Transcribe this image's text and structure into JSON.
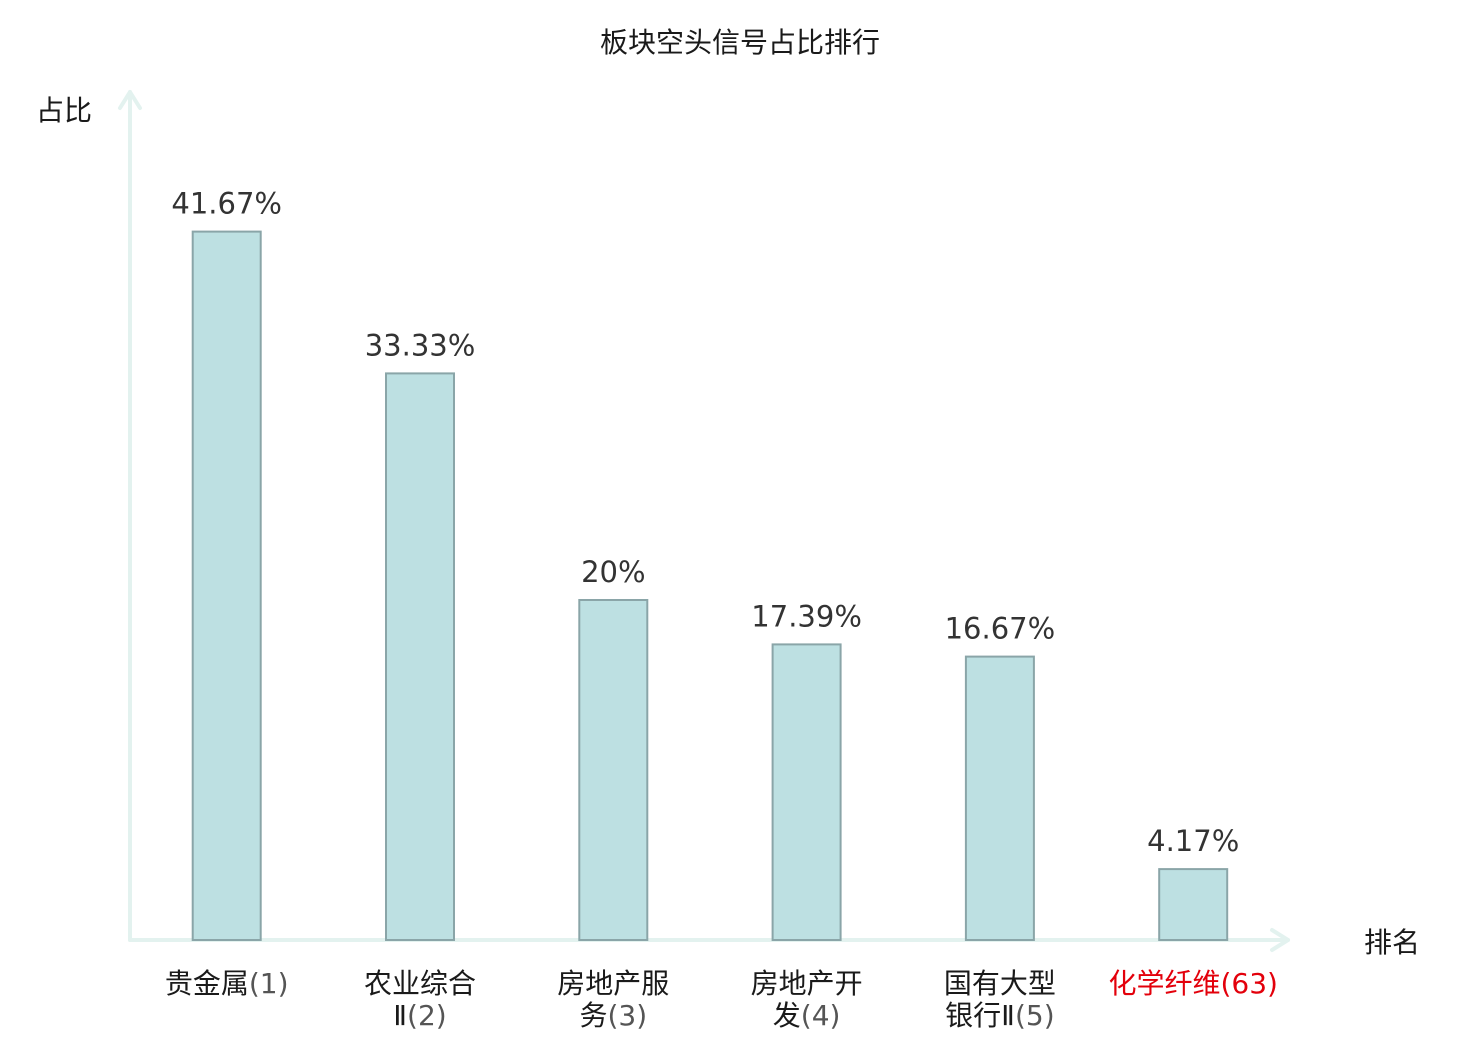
{
  "chart_data": {
    "type": "bar",
    "title": "板块空头信号占比排行",
    "ylabel": "占比",
    "xlabel": "排名",
    "ylim": [
      0,
      45
    ],
    "bar_color": "#bde0e2",
    "bar_border_color": "#8aa5a8",
    "axis_color": "#e3f2ef",
    "highlight_color": "#e3000b",
    "categories": [
      {
        "name_lines": [
          "贵金属"
        ],
        "rank": "(1)",
        "highlight": false
      },
      {
        "name_lines": [
          "农业综合",
          "Ⅱ"
        ],
        "rank": "(2)",
        "highlight": false
      },
      {
        "name_lines": [
          "房地产服",
          "务"
        ],
        "rank": "(3)",
        "highlight": false
      },
      {
        "name_lines": [
          "房地产开",
          "发"
        ],
        "rank": "(4)",
        "highlight": false
      },
      {
        "name_lines": [
          "国有大型",
          "银行Ⅱ"
        ],
        "rank": "(5)",
        "highlight": false
      },
      {
        "name_lines": [
          "化学纤维"
        ],
        "rank": "(63)",
        "highlight": true
      }
    ],
    "values": [
      41.67,
      33.33,
      20,
      17.39,
      16.67,
      4.17
    ],
    "value_labels": [
      "41.67%",
      "33.33%",
      "20%",
      "17.39%",
      "16.67%",
      "4.17%"
    ],
    "grid": false,
    "legend": "none"
  }
}
